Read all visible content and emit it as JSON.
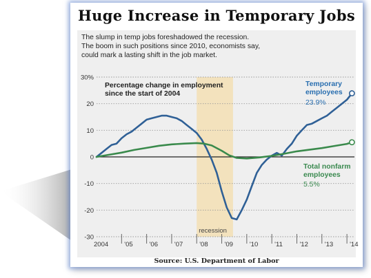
{
  "title": "Huge Increase in Temporary Jobs",
  "subtitle_lines": [
    "The slump in temp jobs foreshadowed the recession.",
    "The boom in such positions since 2010, economists say,",
    "could mark a lasting shift in the job market."
  ],
  "source": "Source:  U.S. Department of Labor",
  "colors": {
    "temporary": "#2f6096",
    "nonfarm": "#3a8a4c",
    "recession_band": "#f3e2bd",
    "gridline": "#9a9a9a",
    "zero_line": "#222222",
    "temporary_label": "#2a6fb0",
    "nonfarm_label": "#3b8a50"
  },
  "chart_data": {
    "type": "line",
    "ylabel": "Percentage change in employment since the start of 2004",
    "ylabel_lines": [
      "Percentage change in employment",
      "since the start of 2004"
    ],
    "ylim": [
      -30,
      30
    ],
    "xlim": [
      2004.0,
      2014.3
    ],
    "y_ticks": [
      30,
      20,
      10,
      0,
      -10,
      -20,
      -30
    ],
    "y_tick_labels": [
      "30%",
      "20",
      "10",
      "0",
      "-10",
      "-20",
      "-30"
    ],
    "x_ticks": [
      2004,
      2005,
      2006,
      2007,
      2008,
      2009,
      2010,
      2011,
      2012,
      2013,
      2014
    ],
    "x_tick_labels": [
      "2004",
      "'05",
      "'06",
      "'07",
      "'08",
      "'09",
      "'10",
      "'11",
      "'12",
      "'13",
      "'14"
    ],
    "grid": true,
    "recession": {
      "label": "recession",
      "start": 2008.0,
      "end": 2009.45
    },
    "series": [
      {
        "name": "Temporary employees",
        "name_lines": [
          "Temporary",
          "employees"
        ],
        "end_label": "23.9%",
        "x": [
          2004.0,
          2004.2,
          2004.4,
          2004.6,
          2004.8,
          2005.0,
          2005.2,
          2005.4,
          2005.6,
          2005.8,
          2006.0,
          2006.2,
          2006.4,
          2006.6,
          2006.8,
          2007.0,
          2007.2,
          2007.4,
          2007.6,
          2007.8,
          2008.0,
          2008.2,
          2008.4,
          2008.6,
          2008.8,
          2009.0,
          2009.2,
          2009.4,
          2009.6,
          2009.8,
          2010.0,
          2010.2,
          2010.4,
          2010.6,
          2010.8,
          2011.0,
          2011.2,
          2011.4,
          2011.6,
          2011.8,
          2012.0,
          2012.2,
          2012.4,
          2012.6,
          2012.8,
          2013.0,
          2013.2,
          2013.4,
          2013.6,
          2013.8,
          2014.0,
          2014.2
        ],
        "values": [
          0,
          1.5,
          3,
          4.5,
          5,
          7,
          8.5,
          9.5,
          11,
          12.5,
          14,
          14.5,
          15,
          15.5,
          15.5,
          15,
          14.5,
          13.5,
          12,
          10.5,
          9,
          6.5,
          3,
          -1,
          -6,
          -13,
          -19,
          -23,
          -23.5,
          -20,
          -16,
          -11,
          -6,
          -3,
          -1,
          0.5,
          1.5,
          0.5,
          3,
          5,
          8,
          10,
          12,
          12.5,
          13.5,
          14.5,
          15.5,
          17,
          18.5,
          20,
          21.5,
          23.9
        ]
      },
      {
        "name": "Total nonfarm employees",
        "name_lines": [
          "Total nonfarm",
          "employees"
        ],
        "end_label": "5.5%",
        "x": [
          2004.0,
          2004.5,
          2005.0,
          2005.5,
          2006.0,
          2006.5,
          2007.0,
          2007.5,
          2008.0,
          2008.3,
          2008.6,
          2009.0,
          2009.3,
          2009.6,
          2010.0,
          2010.5,
          2011.0,
          2011.5,
          2012.0,
          2012.5,
          2013.0,
          2013.5,
          2014.0,
          2014.2
        ],
        "values": [
          0,
          0.8,
          1.6,
          2.6,
          3.4,
          4.2,
          4.7,
          5.0,
          5.2,
          5.0,
          4.3,
          2.3,
          0.6,
          -0.4,
          -0.6,
          -0.2,
          0.4,
          1.2,
          2.1,
          2.7,
          3.3,
          4.1,
          4.9,
          5.5
        ]
      }
    ]
  }
}
